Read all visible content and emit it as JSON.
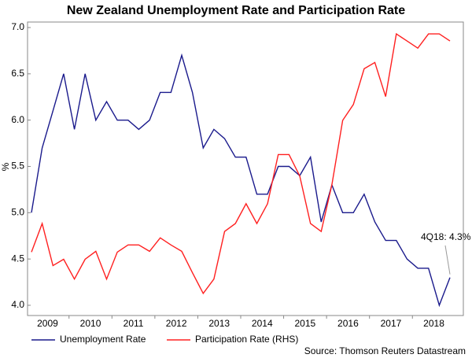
{
  "chart_data": {
    "type": "line",
    "title": "New Zealand Unemployment Rate and Participation Rate",
    "ylabel": "%",
    "source": "Source: Thomson Reuters Datastream",
    "annotations": [
      "4Q18: 4.3%"
    ],
    "categories": [
      null,
      "2009",
      null,
      null,
      null,
      "2010",
      null,
      null,
      null,
      "2011",
      null,
      null,
      null,
      "2012",
      null,
      null,
      null,
      "2013",
      null,
      null,
      null,
      "2014",
      null,
      null,
      null,
      "2015",
      null,
      null,
      null,
      "2016",
      null,
      null,
      null,
      "2017",
      null,
      null,
      null,
      "2018",
      null,
      null
    ],
    "series": [
      {
        "name": "Unemployment Rate",
        "color": "#1a1a8c",
        "values": [
          5.0,
          5.7,
          6.1,
          6.5,
          5.9,
          6.5,
          6.0,
          6.2,
          6.0,
          6.0,
          5.9,
          6.0,
          6.3,
          6.3,
          6.7,
          6.3,
          5.7,
          5.9,
          5.8,
          5.6,
          5.6,
          5.2,
          5.2,
          5.5,
          5.5,
          5.4,
          5.6,
          4.9,
          5.3,
          5.0,
          5.0,
          5.2,
          4.9,
          4.7,
          4.7,
          4.5,
          4.4,
          4.4,
          4.0,
          4.3
        ]
      },
      {
        "name": "Participation Rate (RHS)",
        "color": "#ff2020",
        "axis": "y2",
        "values": [
          68.37,
          68.73,
          68.2,
          68.28,
          68.03,
          68.28,
          68.38,
          68.03,
          68.37,
          68.46,
          68.46,
          68.38,
          68.55,
          68.46,
          68.38,
          68.11,
          67.85,
          68.03,
          68.63,
          68.73,
          68.98,
          68.73,
          68.98,
          69.6,
          69.6,
          69.33,
          68.73,
          68.63,
          69.22,
          70.03,
          70.23,
          70.68,
          70.76,
          70.33,
          71.12,
          71.03,
          70.94,
          71.12,
          71.12,
          71.03
        ]
      }
    ],
    "ylim": [
      4.0,
      7.0
    ],
    "yticks": [
      {
        "value": 4.0,
        "label": "4.0"
      },
      4.5,
      {
        "value": 5.0,
        "label": "5.0"
      },
      5.5,
      {
        "value": 6.0,
        "label": "6.0"
      },
      6.5,
      {
        "value": 7.0,
        "label": "7.0"
      }
    ],
    "y2lim": [
      67.7,
      71.2
    ],
    "grid": false
  }
}
